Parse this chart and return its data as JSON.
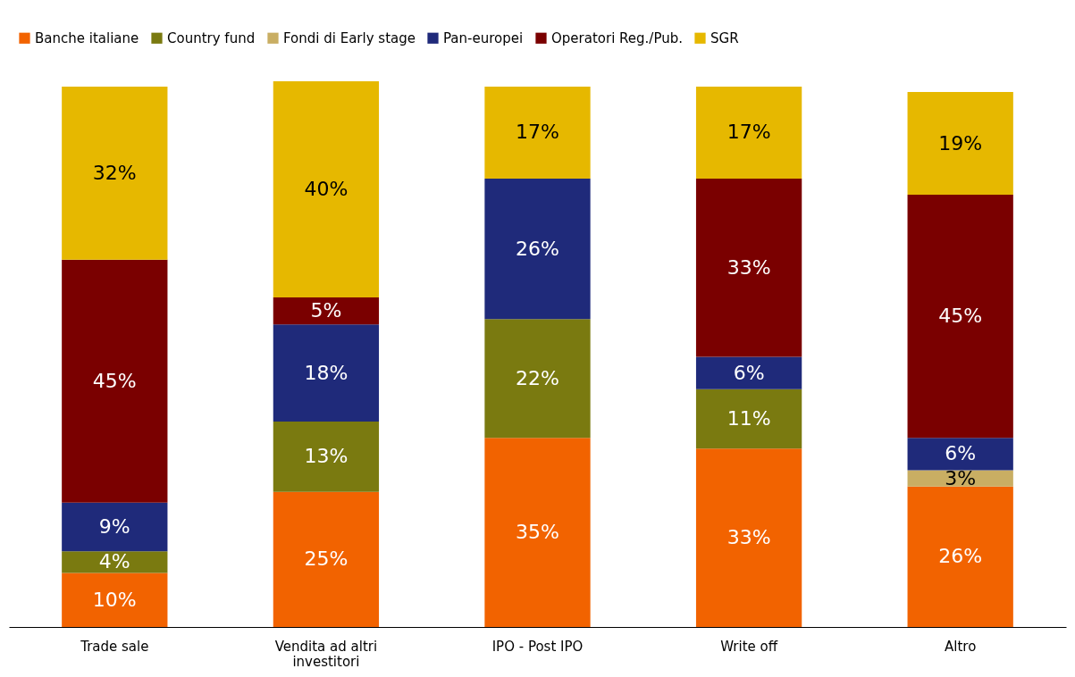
{
  "chart_data": {
    "type": "bar",
    "stacked": true,
    "legend": "top",
    "categories": [
      "Trade sale",
      "Vendita ad altri investitori",
      "IPO - Post IPO",
      "Write off",
      "Altro"
    ],
    "series": [
      {
        "name": "Banche italiane",
        "color": "#f26300",
        "values": [
          10,
          25,
          35,
          33,
          26
        ],
        "value_labels": [
          "10%",
          "25%",
          "35%",
          "33%",
          "26%"
        ]
      },
      {
        "name": "Country fund",
        "color": "#7a7a10",
        "values": [
          4,
          13,
          22,
          11,
          null
        ],
        "value_labels": [
          "4%",
          "13%",
          "22%",
          "11%",
          null
        ]
      },
      {
        "name": "Fondi di Early stage",
        "color": "#c9ae63",
        "values": [
          null,
          null,
          null,
          null,
          3
        ],
        "value_labels": [
          null,
          null,
          null,
          null,
          "3%"
        ]
      },
      {
        "name": "Pan-europei",
        "color": "#1f2a7a",
        "values": [
          9,
          18,
          26,
          6,
          6
        ],
        "value_labels": [
          "9%",
          "18%",
          "26%",
          "6%",
          "6%"
        ]
      },
      {
        "name": "Operatori Reg./Pub.",
        "color": "#7a0000",
        "values": [
          45,
          5,
          null,
          33,
          45
        ],
        "value_labels": [
          "45%",
          "5%",
          null,
          "33%",
          "45%"
        ]
      },
      {
        "name": "SGR",
        "color": "#e6b800",
        "values": [
          32,
          40,
          17,
          17,
          19
        ],
        "value_labels": [
          "32%",
          "40%",
          "17%",
          "17%",
          "19%"
        ]
      }
    ]
  }
}
